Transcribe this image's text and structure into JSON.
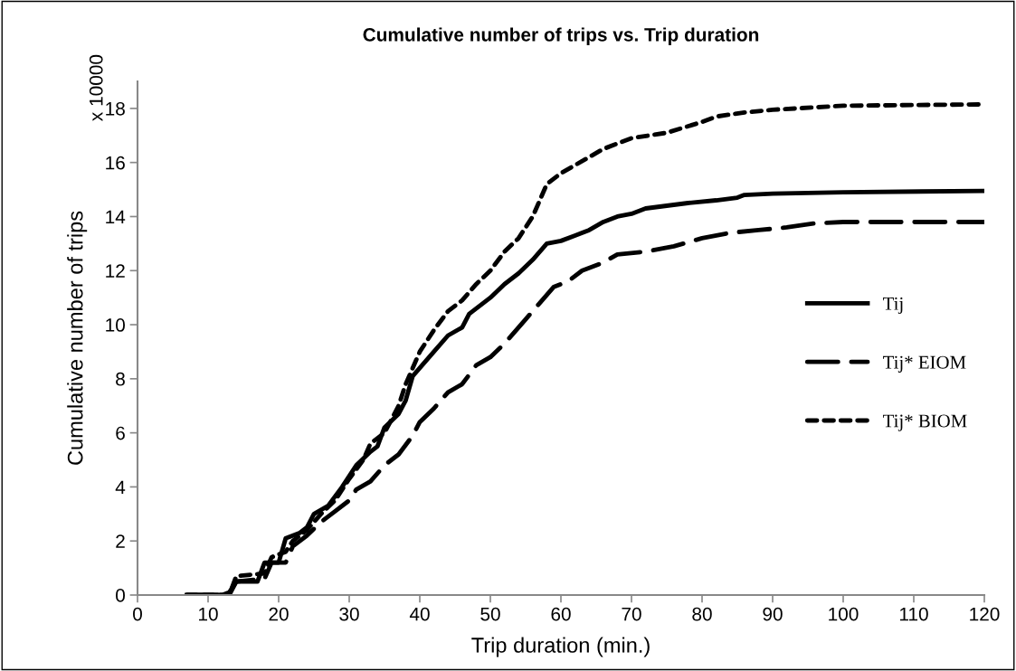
{
  "chart_data": {
    "type": "line",
    "title": "Cumulative number of trips vs. Trip duration",
    "xlabel": "Trip duration (min.)",
    "ylabel": "Cumulative number of trips",
    "annotations": [
      "x 10000"
    ],
    "xlim": [
      0,
      120
    ],
    "xticks": [
      0,
      10,
      20,
      30,
      40,
      50,
      60,
      70,
      80,
      90,
      100,
      110,
      120
    ],
    "ylim": [
      0,
      19
    ],
    "yticks": [
      0,
      2,
      4,
      6,
      8,
      10,
      12,
      14,
      16,
      18
    ],
    "grid": false,
    "legend": "right",
    "marker": "none",
    "series": [
      {
        "name": "Tij",
        "color": "#000000",
        "line_style": "solid",
        "x": [
          7,
          12,
          13,
          14,
          17,
          18,
          20,
          21,
          23,
          24,
          25,
          27,
          29,
          31,
          33,
          34,
          35,
          37,
          38,
          39,
          40,
          42,
          44,
          46,
          47,
          50,
          52,
          54,
          56,
          58,
          60,
          62,
          64,
          66,
          68,
          70,
          72,
          75,
          78,
          82,
          85,
          86,
          90,
          100,
          120
        ],
        "values": [
          0,
          0,
          0.1,
          0.5,
          0.5,
          1.2,
          1.2,
          2.1,
          2.3,
          2.5,
          3.0,
          3.3,
          4.0,
          4.8,
          5.3,
          5.5,
          6.2,
          6.7,
          7.2,
          8.1,
          8.4,
          9.0,
          9.6,
          9.9,
          10.4,
          11.0,
          11.5,
          11.9,
          12.4,
          13.0,
          13.1,
          13.3,
          13.5,
          13.8,
          14.0,
          14.1,
          14.3,
          14.4,
          14.5,
          14.6,
          14.7,
          14.8,
          14.85,
          14.9,
          14.95
        ]
      },
      {
        "name": "Tij* EIOM",
        "color": "#000000",
        "line_style": "dashed",
        "x": [
          7,
          13,
          14,
          18,
          19,
          21,
          22,
          24,
          26,
          28,
          30,
          31,
          33,
          35,
          37,
          39,
          40,
          42,
          44,
          46,
          48,
          50,
          52,
          55,
          57,
          59,
          61,
          63,
          66,
          68,
          72,
          76,
          80,
          84,
          88,
          92,
          96,
          100,
          120
        ],
        "values": [
          0,
          0,
          0.5,
          0.6,
          1.2,
          1.2,
          1.8,
          2.2,
          2.7,
          3.1,
          3.5,
          3.9,
          4.2,
          4.8,
          5.2,
          5.9,
          6.4,
          6.9,
          7.5,
          7.8,
          8.5,
          8.8,
          9.3,
          10.2,
          10.8,
          11.4,
          11.6,
          12.0,
          12.3,
          12.6,
          12.7,
          12.9,
          13.2,
          13.4,
          13.5,
          13.6,
          13.75,
          13.8,
          13.8
        ]
      },
      {
        "name": "Tij* BIOM",
        "color": "#000000",
        "line_style": "dotted",
        "x": [
          7,
          13,
          14,
          18,
          19,
          21,
          22,
          24,
          26,
          28,
          30,
          32,
          33,
          35,
          37,
          38,
          40,
          42,
          44,
          46,
          48,
          50,
          52,
          54,
          56,
          58,
          60,
          62,
          64,
          66,
          70,
          75,
          80,
          82,
          86,
          90,
          100,
          120
        ],
        "values": [
          0,
          0,
          0.7,
          0.8,
          1.4,
          1.6,
          2.0,
          2.4,
          3.0,
          3.5,
          4.3,
          5.0,
          5.6,
          6.0,
          7.0,
          7.8,
          9.0,
          9.8,
          10.5,
          10.9,
          11.5,
          12.0,
          12.7,
          13.2,
          14.0,
          15.2,
          15.6,
          15.9,
          16.2,
          16.5,
          16.9,
          17.1,
          17.5,
          17.7,
          17.85,
          17.95,
          18.1,
          18.15
        ]
      }
    ]
  }
}
